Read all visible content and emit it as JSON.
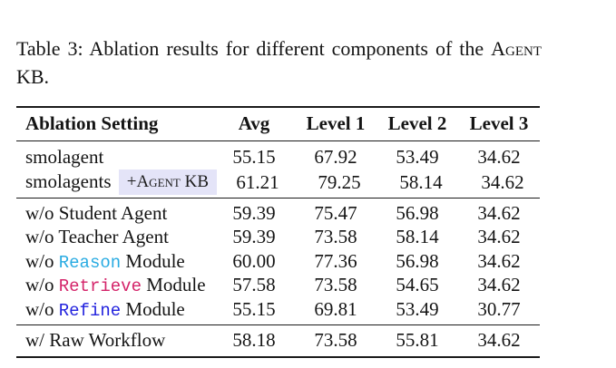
{
  "caption": {
    "label": "Table 3:",
    "body": " Ablation results for different components of the ",
    "subject": "Agent KB."
  },
  "colors": {
    "reason": "#29ABE2",
    "retrieve": "#D4246A",
    "refine": "#2323DE",
    "badge_bg": "#E4E4F8",
    "rule": "#1a1a1a"
  },
  "table": {
    "columns": [
      "Ablation Setting",
      "Avg",
      "Level 1",
      "Level 2",
      "Level 3"
    ],
    "sections": [
      {
        "name": "baseline",
        "rows": [
          {
            "label_parts": [
              {
                "text": "smolagent",
                "style": "plain"
              }
            ],
            "values": [
              "55.15",
              "67.92",
              "53.49",
              "34.62"
            ]
          },
          {
            "label_parts": [
              {
                "text": "smolagents ",
                "style": "plain"
              },
              {
                "text": "+Agent KB",
                "style": "badge"
              }
            ],
            "values": [
              "61.21",
              "79.25",
              "58.14",
              "34.62"
            ]
          }
        ]
      },
      {
        "name": "component-ablations",
        "rows": [
          {
            "label_parts": [
              {
                "text": "w/o Student Agent",
                "style": "plain"
              }
            ],
            "values": [
              "59.39",
              "75.47",
              "56.98",
              "34.62"
            ]
          },
          {
            "label_parts": [
              {
                "text": "w/o Teacher Agent",
                "style": "plain"
              }
            ],
            "values": [
              "59.39",
              "73.58",
              "58.14",
              "34.62"
            ]
          },
          {
            "label_parts": [
              {
                "text": "w/o ",
                "style": "plain"
              },
              {
                "text": "Reason",
                "style": "mono-reason"
              },
              {
                "text": " Module",
                "style": "plain"
              }
            ],
            "values": [
              "60.00",
              "77.36",
              "56.98",
              "34.62"
            ]
          },
          {
            "label_parts": [
              {
                "text": "w/o ",
                "style": "plain"
              },
              {
                "text": "Retrieve",
                "style": "mono-retrieve"
              },
              {
                "text": " Module",
                "style": "plain"
              }
            ],
            "values": [
              "57.58",
              "73.58",
              "54.65",
              "34.62"
            ]
          },
          {
            "label_parts": [
              {
                "text": "w/o ",
                "style": "plain"
              },
              {
                "text": "Refine",
                "style": "mono-refine"
              },
              {
                "text": " Module",
                "style": "plain"
              }
            ],
            "values": [
              "55.15",
              "69.81",
              "53.49",
              "30.77"
            ]
          }
        ]
      },
      {
        "name": "workflow",
        "rows": [
          {
            "label_parts": [
              {
                "text": "w/ Raw Workflow",
                "style": "plain"
              }
            ],
            "values": [
              "58.18",
              "73.58",
              "55.81",
              "34.62"
            ]
          }
        ]
      }
    ]
  }
}
